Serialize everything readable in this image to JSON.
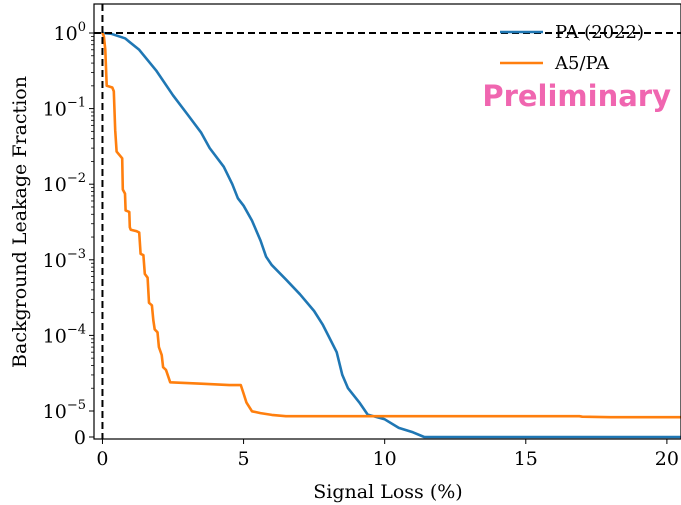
{
  "chart_data": {
    "type": "line",
    "xlabel": "Signal Loss (%)",
    "ylabel": "Background Leakage Fraction",
    "xlim": [
      -0.3,
      20.5
    ],
    "y_scale": "symlog",
    "y_linthresh": 1e-05,
    "y_ticks": [
      {
        "value": 0,
        "label": "0"
      },
      {
        "value": 1e-05,
        "label": "10",
        "exp": "−5"
      },
      {
        "value": 0.0001,
        "label": "10",
        "exp": "−4"
      },
      {
        "value": 0.001,
        "label": "10",
        "exp": "−3"
      },
      {
        "value": 0.01,
        "label": "10",
        "exp": "−2"
      },
      {
        "value": 0.1,
        "label": "10",
        "exp": "−1"
      },
      {
        "value": 1,
        "label": "10",
        "exp": "0"
      }
    ],
    "x_ticks": [
      {
        "value": 0,
        "label": "0"
      },
      {
        "value": 5,
        "label": "5"
      },
      {
        "value": 10,
        "label": "10"
      },
      {
        "value": 15,
        "label": "15"
      },
      {
        "value": 20,
        "label": "20"
      }
    ],
    "reference_lines": {
      "x": 0,
      "y": 1,
      "color": "#000000",
      "style": "dashed"
    },
    "legend_position": "top-right",
    "annotation": {
      "text": "Preliminary",
      "color": "#f066b0"
    },
    "series": [
      {
        "name": "PA (2022)",
        "color": "#1f77b4",
        "points": [
          [
            0.0,
            1.0
          ],
          [
            0.3,
            0.98
          ],
          [
            0.8,
            0.85
          ],
          [
            1.3,
            0.6
          ],
          [
            1.9,
            0.32
          ],
          [
            2.5,
            0.15
          ],
          [
            3.0,
            0.085
          ],
          [
            3.5,
            0.048
          ],
          [
            3.8,
            0.03
          ],
          [
            4.3,
            0.017
          ],
          [
            4.6,
            0.01
          ],
          [
            4.8,
            0.0065
          ],
          [
            5.0,
            0.0052
          ],
          [
            5.3,
            0.0033
          ],
          [
            5.6,
            0.0018
          ],
          [
            5.8,
            0.0011
          ],
          [
            6.0,
            0.00085
          ],
          [
            6.5,
            0.00055
          ],
          [
            7.0,
            0.00035
          ],
          [
            7.5,
            0.00021
          ],
          [
            7.8,
            0.00014
          ],
          [
            8.0,
            0.0001
          ],
          [
            8.3,
            6e-05
          ],
          [
            8.5,
            3e-05
          ],
          [
            8.7,
            2e-05
          ],
          [
            9.1,
            1.3e-05
          ],
          [
            9.4,
            8.6e-06
          ],
          [
            10.0,
            6.8e-06
          ],
          [
            10.5,
            3.5e-06
          ],
          [
            11.0,
            1.8e-06
          ],
          [
            11.4,
            0.0
          ],
          [
            20.5,
            0.0
          ]
        ]
      },
      {
        "name": "A5/PA",
        "color": "#ff7f0e",
        "points": [
          [
            0.0,
            1.0
          ],
          [
            0.05,
            0.9
          ],
          [
            0.1,
            0.6
          ],
          [
            0.15,
            0.2
          ],
          [
            0.35,
            0.19
          ],
          [
            0.4,
            0.17
          ],
          [
            0.45,
            0.052
          ],
          [
            0.5,
            0.027
          ],
          [
            0.7,
            0.022
          ],
          [
            0.72,
            0.0085
          ],
          [
            0.8,
            0.0075
          ],
          [
            0.82,
            0.0045
          ],
          [
            0.95,
            0.0043
          ],
          [
            0.97,
            0.0027
          ],
          [
            1.0,
            0.0025
          ],
          [
            1.2,
            0.0024
          ],
          [
            1.3,
            0.0023
          ],
          [
            1.35,
            0.0012
          ],
          [
            1.45,
            0.00115
          ],
          [
            1.5,
            0.00065
          ],
          [
            1.6,
            0.00058
          ],
          [
            1.65,
            0.00027
          ],
          [
            1.75,
            0.00025
          ],
          [
            1.8,
            0.00016
          ],
          [
            1.85,
            0.00012
          ],
          [
            1.95,
            0.00011
          ],
          [
            2.0,
            7e-05
          ],
          [
            2.1,
            5.5e-05
          ],
          [
            2.15,
            3.8e-05
          ],
          [
            2.25,
            3.5e-05
          ],
          [
            2.4,
            2.4e-05
          ],
          [
            3.5,
            2.3e-05
          ],
          [
            4.5,
            2.2e-05
          ],
          [
            4.9,
            2.2e-05
          ],
          [
            5.0,
            1.7e-05
          ],
          [
            5.1,
            1.3e-05
          ],
          [
            5.3,
            9.9e-06
          ],
          [
            5.6,
            9.2e-06
          ],
          [
            6.0,
            8.5e-06
          ],
          [
            6.5,
            8e-06
          ],
          [
            7.0,
            8e-06
          ],
          [
            10.0,
            8e-06
          ],
          [
            16.9,
            8e-06
          ],
          [
            17.0,
            7.8e-06
          ],
          [
            18.0,
            7.6e-06
          ],
          [
            20.5,
            7.6e-06
          ]
        ]
      }
    ]
  }
}
